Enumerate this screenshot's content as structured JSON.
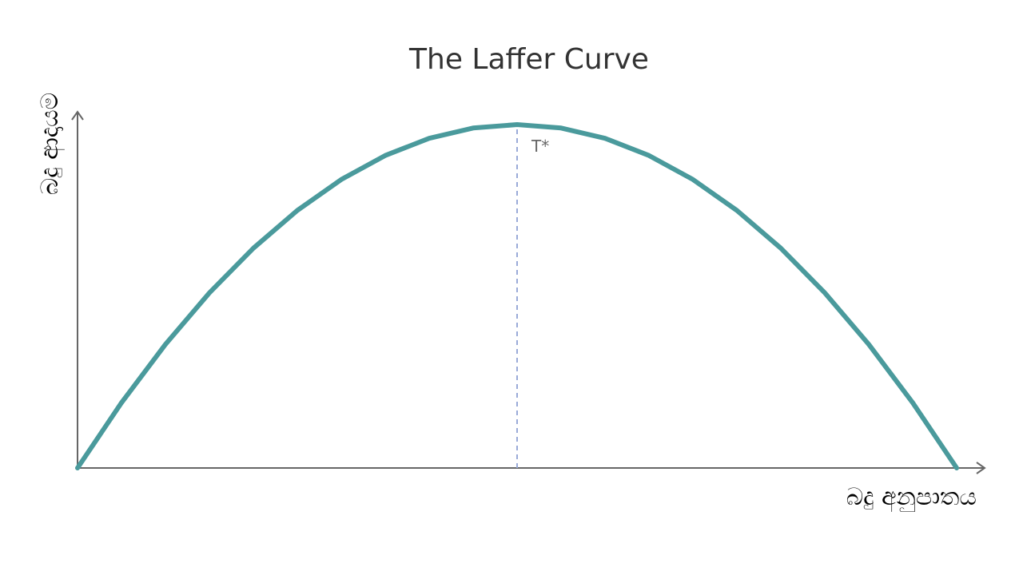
{
  "chart_data": {
    "type": "line",
    "title": "The Laffer Curve",
    "xlabel": "බදු අනුපාතය",
    "ylabel": "බදු ආදායම",
    "xlim": [
      0,
      100
    ],
    "ylim": [
      0,
      100
    ],
    "grid": false,
    "axis_ticks": false,
    "series": [
      {
        "color": "#4a9a9c",
        "x": [
          0,
          5,
          10,
          15,
          20,
          25,
          30,
          35,
          40,
          45,
          50,
          55,
          60,
          65,
          70,
          75,
          80,
          85,
          90,
          95,
          100
        ],
        "y": [
          0,
          19,
          36,
          51,
          64,
          75,
          84,
          91,
          96,
          99,
          100,
          99,
          96,
          91,
          84,
          75,
          64,
          51,
          36,
          19,
          0
        ]
      }
    ],
    "peak": {
      "x": 50,
      "y": 100,
      "label": "T*",
      "line_style": "dashed",
      "line_color": "#9aaad8"
    },
    "axis_color": "#666666"
  }
}
